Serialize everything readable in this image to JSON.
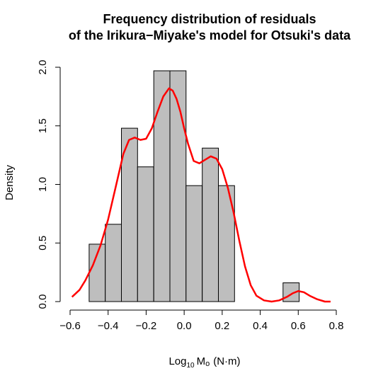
{
  "chart_data": {
    "type": "histogram",
    "title_lines": [
      "Frequency distribution of residuals",
      "of the Irikura−Miyake's model for Otsuki's data"
    ],
    "xlabel_main": "Log",
    "xlabel_sub": "10",
    "xlabel_m": "M",
    "xlabel_o": "o",
    "xlabel_units": "(N·m)",
    "ylabel": "Density",
    "xlim": [
      -0.6,
      0.8
    ],
    "ylim": [
      0,
      2.0
    ],
    "x_ticks": [
      -0.6,
      -0.4,
      -0.2,
      0.0,
      0.2,
      0.4,
      0.6,
      0.8
    ],
    "x_tick_labels": [
      "−0.6",
      "−0.4",
      "−0.2",
      "0.0",
      "0.2",
      "0.4",
      "0.6",
      "0.8"
    ],
    "y_ticks": [
      0.0,
      0.5,
      1.0,
      1.5,
      2.0
    ],
    "y_tick_labels": [
      "0.0",
      "0.5",
      "1.0",
      "1.5",
      "2.0"
    ],
    "bins": [
      {
        "x0": -0.5,
        "x1": -0.415,
        "density": 0.49
      },
      {
        "x0": -0.415,
        "x1": -0.33,
        "density": 0.66
      },
      {
        "x0": -0.33,
        "x1": -0.245,
        "density": 1.48
      },
      {
        "x0": -0.245,
        "x1": -0.16,
        "density": 1.15
      },
      {
        "x0": -0.16,
        "x1": -0.075,
        "density": 1.97
      },
      {
        "x0": -0.075,
        "x1": 0.01,
        "density": 1.97
      },
      {
        "x0": 0.01,
        "x1": 0.095,
        "density": 0.99
      },
      {
        "x0": 0.095,
        "x1": 0.18,
        "density": 1.31
      },
      {
        "x0": 0.18,
        "x1": 0.265,
        "density": 0.99
      },
      {
        "x0": 0.265,
        "x1": 0.35,
        "density": 0.0
      },
      {
        "x0": 0.35,
        "x1": 0.435,
        "density": 0.0
      },
      {
        "x0": 0.435,
        "x1": 0.52,
        "density": 0.0
      },
      {
        "x0": 0.52,
        "x1": 0.605,
        "density": 0.16
      }
    ],
    "density_curve": {
      "color": "#ff0000",
      "x": [
        -0.59,
        -0.55,
        -0.52,
        -0.48,
        -0.44,
        -0.4,
        -0.36,
        -0.32,
        -0.29,
        -0.26,
        -0.23,
        -0.2,
        -0.17,
        -0.14,
        -0.11,
        -0.08,
        -0.06,
        -0.04,
        -0.02,
        0.0,
        0.02,
        0.05,
        0.08,
        0.11,
        0.14,
        0.17,
        0.2,
        0.23,
        0.26,
        0.29,
        0.32,
        0.35,
        0.38,
        0.42,
        0.46,
        0.5,
        0.54,
        0.57,
        0.6,
        0.63,
        0.66,
        0.7,
        0.74,
        0.77
      ],
      "y": [
        0.04,
        0.1,
        0.18,
        0.31,
        0.48,
        0.7,
        0.98,
        1.26,
        1.38,
        1.4,
        1.38,
        1.39,
        1.48,
        1.62,
        1.75,
        1.82,
        1.8,
        1.73,
        1.62,
        1.48,
        1.35,
        1.2,
        1.18,
        1.21,
        1.24,
        1.22,
        1.13,
        0.97,
        0.76,
        0.52,
        0.3,
        0.14,
        0.05,
        0.01,
        0.0,
        0.01,
        0.04,
        0.07,
        0.09,
        0.08,
        0.05,
        0.02,
        0.0,
        0.0
      ]
    }
  }
}
